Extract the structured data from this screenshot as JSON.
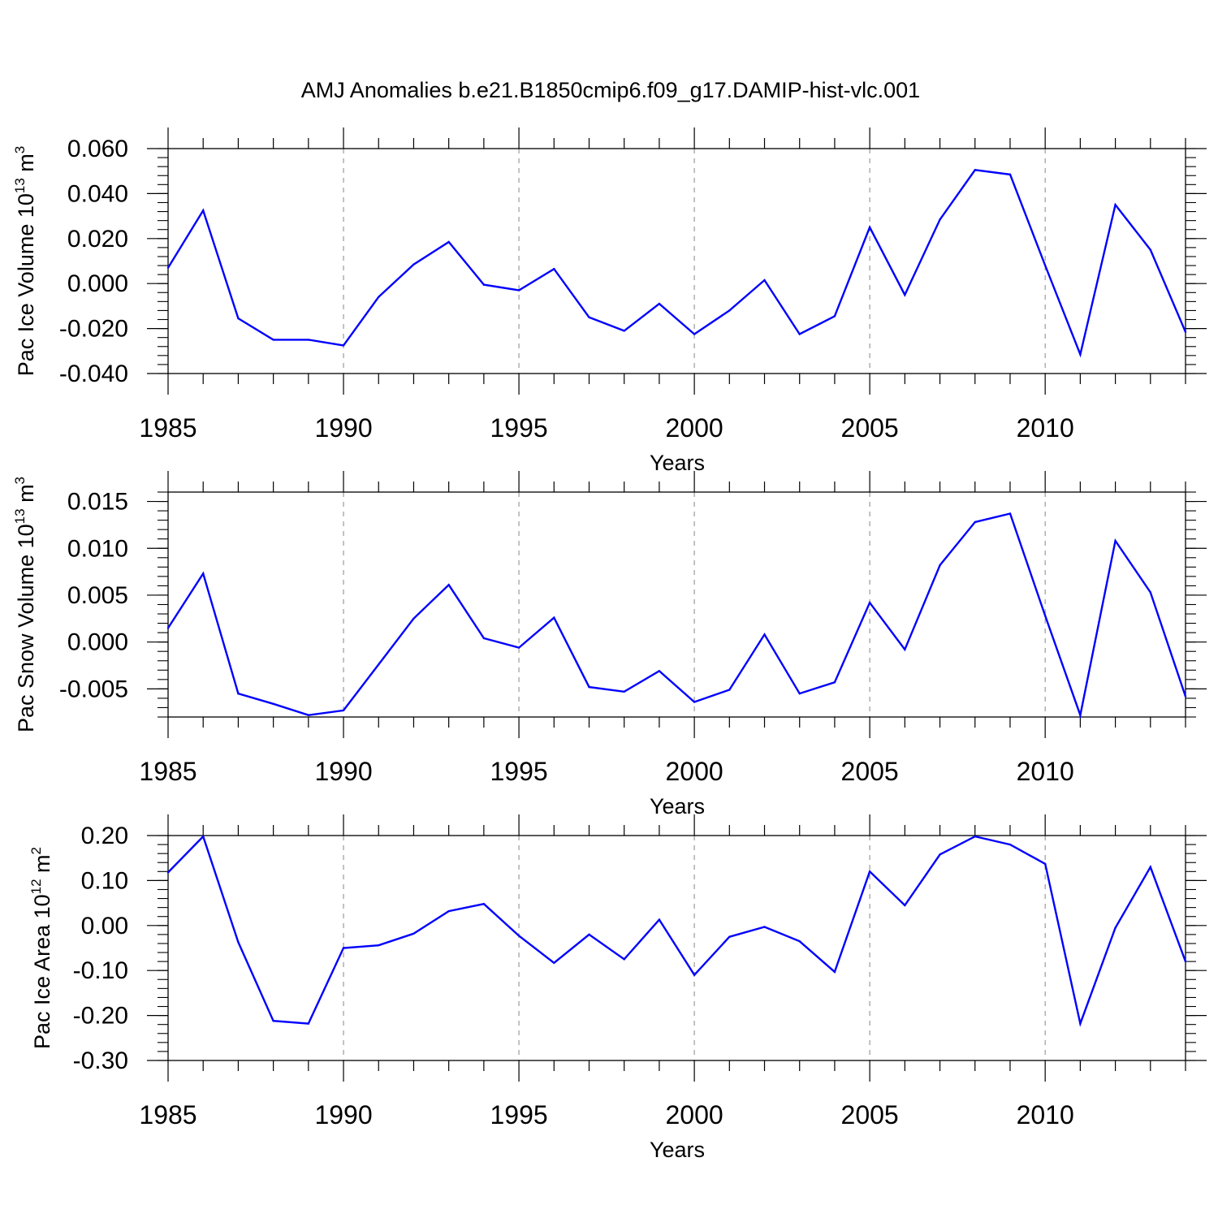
{
  "title": "AMJ Anomalies b.e21.B1850cmip6.f09_g17.DAMIP-hist-vlc.001",
  "colors": {
    "line": "#0000ff",
    "axis": "#000000",
    "grid": "#9a9a9a",
    "background": "#ffffff"
  },
  "chart_data": [
    {
      "type": "line",
      "ylabel": "Pac Ice Volume 10",
      "ylabel_exp": "13",
      "ylabel_unit": "m",
      "ylabel_unit_exp": "3",
      "xlabel": "Years",
      "xlim": [
        1985,
        2014
      ],
      "ylim": [
        -0.04,
        0.06
      ],
      "yticks": [
        0.06,
        0.04,
        0.02,
        0.0,
        -0.02,
        -0.04
      ],
      "ytick_labels": [
        "0.060",
        "0.040",
        "0.020",
        "0.000",
        "-0.020",
        "-0.040"
      ],
      "xticks": [
        1985,
        1990,
        1995,
        2000,
        2005,
        2010
      ],
      "xtick_labels": [
        "1985",
        "1990",
        "1995",
        "2000",
        "2005",
        "2010"
      ],
      "grid": "vertical dashed at 1990, 1995, 2000, 2005, 2010",
      "x": [
        1985,
        1986,
        1987,
        1988,
        1989,
        1990,
        1991,
        1992,
        1993,
        1994,
        1995,
        1996,
        1997,
        1998,
        1999,
        2000,
        2001,
        2002,
        2003,
        2004,
        2005,
        2006,
        2007,
        2008,
        2009,
        2010,
        2011,
        2012,
        2013,
        2014
      ],
      "values": [
        0.007,
        0.0325,
        -0.0155,
        -0.025,
        -0.025,
        -0.0275,
        -0.006,
        0.0085,
        0.0185,
        -0.0005,
        -0.003,
        0.0065,
        -0.015,
        -0.021,
        -0.009,
        -0.0225,
        -0.012,
        0.0015,
        -0.0225,
        -0.0145,
        0.025,
        -0.005,
        0.0285,
        0.0505,
        0.0485,
        0.008,
        -0.0315,
        0.035,
        0.015,
        -0.0215
      ]
    },
    {
      "type": "line",
      "ylabel": "Pac Snow Volume 10",
      "ylabel_exp": "13",
      "ylabel_unit": "m",
      "ylabel_unit_exp": "3",
      "xlabel": "Years",
      "xlim": [
        1985,
        2014
      ],
      "ylim": [
        -0.008,
        0.016
      ],
      "yticks": [
        0.015,
        0.01,
        0.005,
        0.0,
        -0.005
      ],
      "ytick_labels": [
        "0.015",
        "0.010",
        "0.005",
        "0.000",
        "-0.005"
      ],
      "xticks": [
        1985,
        1990,
        1995,
        2000,
        2005,
        2010
      ],
      "xtick_labels": [
        "1985",
        "1990",
        "1995",
        "2000",
        "2005",
        "2010"
      ],
      "grid": "vertical dashed at 1990, 1995, 2000, 2005, 2010",
      "x": [
        1985,
        1986,
        1987,
        1988,
        1989,
        1990,
        1991,
        1992,
        1993,
        1994,
        1995,
        1996,
        1997,
        1998,
        1999,
        2000,
        2001,
        2002,
        2003,
        2004,
        2005,
        2006,
        2007,
        2008,
        2009,
        2010,
        2011,
        2012,
        2013,
        2014
      ],
      "values": [
        0.0015,
        0.0073,
        -0.0055,
        -0.0066,
        -0.0078,
        -0.0073,
        -0.0024,
        0.0025,
        0.0061,
        0.0004,
        -0.0006,
        0.0026,
        -0.0048,
        -0.0053,
        -0.0031,
        -0.0064,
        -0.0051,
        0.0008,
        -0.0055,
        -0.0043,
        0.0042,
        -0.0008,
        0.0082,
        0.0128,
        0.0137,
        0.0028,
        -0.0078,
        0.0108,
        0.0053,
        -0.0058
      ]
    },
    {
      "type": "line",
      "ylabel": "Pac Ice Area 10",
      "ylabel_exp": "12",
      "ylabel_unit": "m",
      "ylabel_unit_exp": "2",
      "xlabel": "Years",
      "xlim": [
        1985,
        2014
      ],
      "ylim": [
        -0.3,
        0.2
      ],
      "yticks": [
        0.2,
        0.1,
        0.0,
        -0.1,
        -0.2,
        -0.3
      ],
      "ytick_labels": [
        "0.20",
        "0.10",
        "0.00",
        "-0.10",
        "-0.20",
        "-0.30"
      ],
      "xticks": [
        1985,
        1990,
        1995,
        2000,
        2005,
        2010
      ],
      "xtick_labels": [
        "1985",
        "1990",
        "1995",
        "2000",
        "2005",
        "2010"
      ],
      "grid": "vertical dashed at 1990, 1995, 2000, 2005, 2010",
      "x": [
        1985,
        1986,
        1987,
        1988,
        1989,
        1990,
        1991,
        1992,
        1993,
        1994,
        1995,
        1996,
        1997,
        1998,
        1999,
        2000,
        2001,
        2002,
        2003,
        2004,
        2005,
        2006,
        2007,
        2008,
        2009,
        2010,
        2011,
        2012,
        2013,
        2014
      ],
      "values": [
        0.118,
        0.198,
        -0.037,
        -0.212,
        -0.218,
        -0.05,
        -0.044,
        -0.018,
        0.032,
        0.048,
        -0.023,
        -0.083,
        -0.02,
        -0.075,
        0.013,
        -0.11,
        -0.025,
        -0.003,
        -0.035,
        -0.103,
        0.12,
        0.045,
        0.158,
        0.198,
        0.18,
        0.137,
        -0.218,
        -0.005,
        0.13,
        -0.08
      ]
    }
  ]
}
